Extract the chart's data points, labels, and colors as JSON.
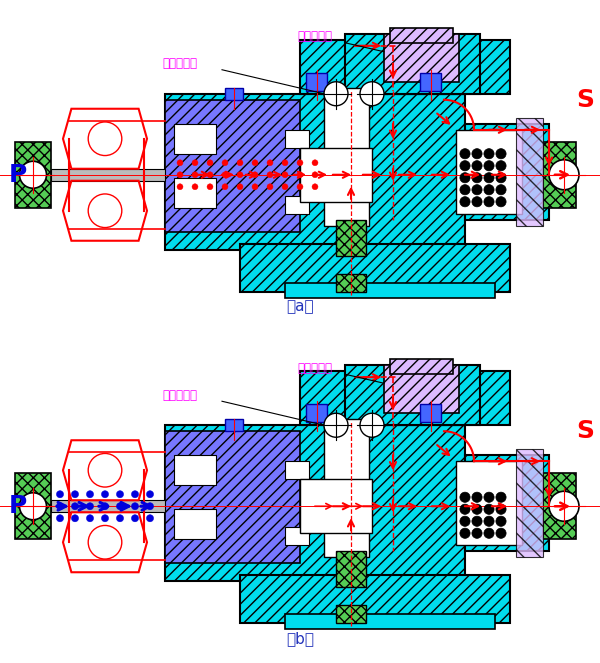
{
  "fig_width": 6.0,
  "fig_height": 6.63,
  "bg_color": "#ffffff",
  "cyan": "#00DDEE",
  "blue_hatch_color": "#7777FF",
  "purple_hatch": "#DDAAFF",
  "green_hatch": "#55CC55",
  "red": "#FF0000",
  "blue": "#0000DD",
  "magenta": "#FF00FF",
  "black": "#000000",
  "label_a": "（a）",
  "label_b": "（b）",
  "label_P": "P",
  "label_S": "S",
  "label_odd": "奇数档气管",
  "label_even": "偶数档气管"
}
